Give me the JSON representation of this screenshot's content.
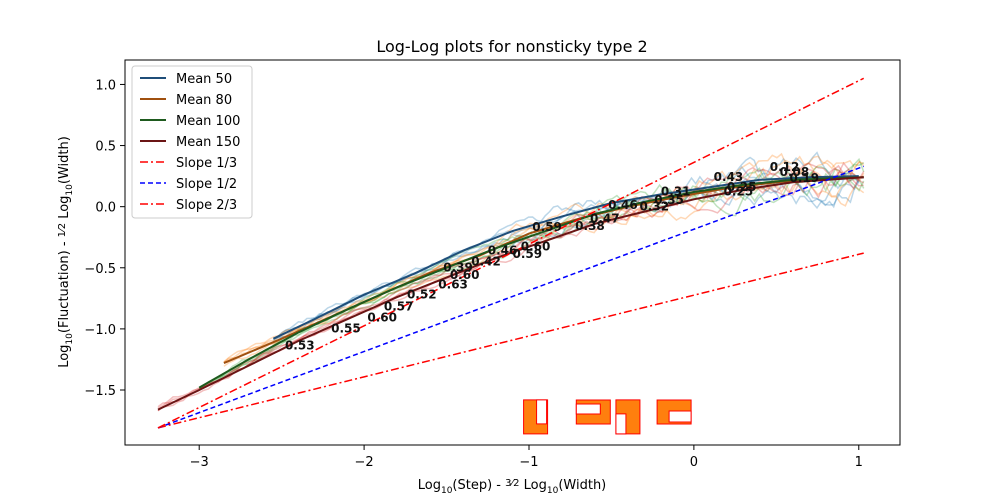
{
  "chart_data": {
    "type": "line",
    "title": "Log-Log plots for nonsticky type 2",
    "xlabel_parts": [
      "Log",
      "10",
      "(Step) - ",
      "3",
      "2",
      " Log",
      "10",
      "(Width)"
    ],
    "ylabel_parts": [
      "Log",
      "10",
      "(Fluctuation) - ",
      "1",
      "2",
      " Log",
      "10",
      "(Width)"
    ],
    "xlim": [
      -3.45,
      1.25
    ],
    "ylim": [
      -1.95,
      1.2
    ],
    "xticks": [
      -3,
      -2,
      -1,
      0,
      1
    ],
    "xtick_labels": [
      "−3",
      "−2",
      "−1",
      "0",
      "1"
    ],
    "yticks": [
      -1.5,
      -1.0,
      -0.5,
      0.0,
      0.5,
      1.0
    ],
    "ytick_labels": [
      "−1.5",
      "−1.0",
      "−0.5",
      "0.0",
      "0.5",
      "1.0"
    ],
    "grid": false,
    "legend_position": "upper-left",
    "colors": {
      "mean50": "#1f4e79",
      "mean80": "#a0500f",
      "mean100": "#1e5a1e",
      "mean150": "#6b1515",
      "slope13": "#ff0000",
      "slope12": "#0000ff",
      "slope23": "#ff0000",
      "orange_patch": "#ff7f0e",
      "patch_edge": "#ff0000"
    },
    "series": [
      {
        "name": "Mean 50",
        "x": [
          -2.55,
          -2.3,
          -2.0,
          -1.7,
          -1.4,
          -1.1,
          -0.8,
          -0.5,
          -0.2,
          0.1,
          0.4,
          0.7,
          1.0
        ],
        "y": [
          -1.08,
          -0.92,
          -0.72,
          -0.55,
          -0.36,
          -0.2,
          -0.08,
          0.03,
          0.1,
          0.16,
          0.22,
          0.24,
          0.25
        ]
      },
      {
        "name": "Mean 80",
        "x": [
          -2.85,
          -2.5,
          -2.2,
          -1.9,
          -1.6,
          -1.3,
          -1.0,
          -0.7,
          -0.4,
          -0.1,
          0.2,
          0.5,
          0.8,
          1.03
        ],
        "y": [
          -1.28,
          -1.08,
          -0.9,
          -0.72,
          -0.54,
          -0.4,
          -0.22,
          -0.1,
          0.0,
          0.08,
          0.15,
          0.2,
          0.23,
          0.24
        ]
      },
      {
        "name": "Mean 100",
        "x": [
          -3.0,
          -2.7,
          -2.4,
          -2.1,
          -1.8,
          -1.5,
          -1.2,
          -0.9,
          -0.6,
          -0.3,
          0.0,
          0.3,
          0.6,
          1.03
        ],
        "y": [
          -1.48,
          -1.25,
          -1.03,
          -0.84,
          -0.66,
          -0.5,
          -0.34,
          -0.2,
          -0.06,
          0.04,
          0.12,
          0.18,
          0.22,
          0.24
        ]
      },
      {
        "name": "Mean 150",
        "x": [
          -3.25,
          -3.0,
          -2.7,
          -2.4,
          -2.1,
          -1.8,
          -1.5,
          -1.2,
          -0.9,
          -0.6,
          -0.3,
          0.0,
          0.3,
          0.6,
          1.03
        ],
        "y": [
          -1.66,
          -1.5,
          -1.3,
          -1.1,
          -0.92,
          -0.74,
          -0.58,
          -0.42,
          -0.28,
          -0.14,
          -0.04,
          0.06,
          0.14,
          0.2,
          0.24
        ]
      },
      {
        "name": "Slope 1/3",
        "x": [
          -3.25,
          1.03
        ],
        "y": [
          -1.81,
          -0.38
        ]
      },
      {
        "name": "Slope 1/2",
        "x": [
          -3.25,
          1.03
        ],
        "y": [
          -1.81,
          0.33
        ]
      },
      {
        "name": "Slope 2/3",
        "x": [
          -3.25,
          1.03
        ],
        "y": [
          -1.81,
          1.05
        ]
      }
    ],
    "annotations": [
      {
        "text": "0.53",
        "x": -2.48,
        "y": -1.17
      },
      {
        "text": "0.55",
        "x": -2.2,
        "y": -1.03
      },
      {
        "text": "0.60",
        "x": -1.98,
        "y": -0.94
      },
      {
        "text": "0.57",
        "x": -1.88,
        "y": -0.85
      },
      {
        "text": "0.52",
        "x": -1.74,
        "y": -0.75
      },
      {
        "text": "0.63",
        "x": -1.55,
        "y": -0.67
      },
      {
        "text": "0.60",
        "x": -1.48,
        "y": -0.59
      },
      {
        "text": "0.39",
        "x": -1.52,
        "y": -0.53
      },
      {
        "text": "0.42",
        "x": -1.35,
        "y": -0.48
      },
      {
        "text": "0.46",
        "x": -1.25,
        "y": -0.39
      },
      {
        "text": "0.59",
        "x": -1.1,
        "y": -0.42
      },
      {
        "text": "0.60",
        "x": -1.05,
        "y": -0.36
      },
      {
        "text": "0.59",
        "x": -0.98,
        "y": -0.2
      },
      {
        "text": "0.38",
        "x": -0.72,
        "y": -0.19
      },
      {
        "text": "0.47",
        "x": -0.63,
        "y": -0.13
      },
      {
        "text": "0.46",
        "x": -0.52,
        "y": -0.02
      },
      {
        "text": "0.32",
        "x": -0.33,
        "y": -0.03
      },
      {
        "text": "0.35",
        "x": -0.24,
        "y": 0.02
      },
      {
        "text": "0.31",
        "x": -0.2,
        "y": 0.09
      },
      {
        "text": "0.43",
        "x": 0.12,
        "y": 0.21
      },
      {
        "text": "0.25",
        "x": 0.18,
        "y": 0.09
      },
      {
        "text": "0.25",
        "x": 0.2,
        "y": 0.13
      },
      {
        "text": "0.12",
        "x": 0.46,
        "y": 0.29
      },
      {
        "text": "0.08",
        "x": 0.52,
        "y": 0.25
      },
      {
        "text": "0.19",
        "x": 0.58,
        "y": 0.2
      }
    ],
    "inset_icons": [
      {
        "label": "patch-1",
        "x": -0.96,
        "y": -1.72
      },
      {
        "label": "patch-2",
        "x": -0.61,
        "y": -1.68
      },
      {
        "label": "patch-3",
        "x": -0.4,
        "y": -1.72
      },
      {
        "label": "patch-4",
        "x": -0.12,
        "y": -1.68
      }
    ]
  }
}
